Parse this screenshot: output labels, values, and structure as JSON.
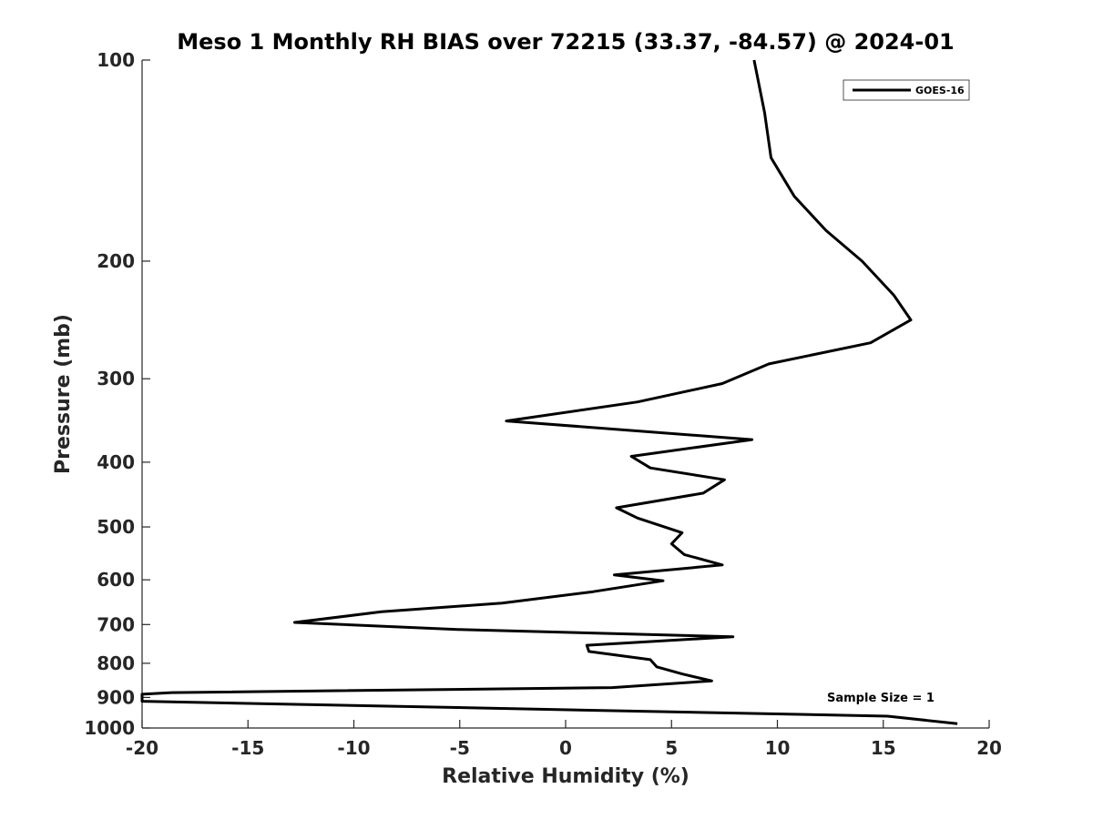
{
  "chart_data": {
    "type": "line",
    "title": "Meso 1 Monthly RH BIAS over 72215 (33.37, -84.57) @ 2024-01",
    "xlabel": "Relative Humidity (%)",
    "ylabel": "Pressure (mb)",
    "xlim": [
      -20,
      20
    ],
    "ylim": [
      1000,
      100
    ],
    "y_scale": "log",
    "y_reversed": true,
    "grid": false,
    "legend_position": "top-right",
    "x_ticks": [
      "-20",
      "-15",
      "-10",
      "-5",
      "0",
      "5",
      "10",
      "15",
      "20"
    ],
    "y_ticks": [
      "100",
      "200",
      "300",
      "400",
      "500",
      "600",
      "700",
      "800",
      "900",
      "1000"
    ],
    "annotation": "Sample Size = 1",
    "series": [
      {
        "name": "GOES-16",
        "color": "#000000",
        "points": [
          {
            "x": 8.9,
            "y": 100
          },
          {
            "x": 9.4,
            "y": 120
          },
          {
            "x": 9.7,
            "y": 140
          },
          {
            "x": 10.8,
            "y": 160
          },
          {
            "x": 12.3,
            "y": 180
          },
          {
            "x": 14.0,
            "y": 200
          },
          {
            "x": 15.5,
            "y": 225
          },
          {
            "x": 16.3,
            "y": 245
          },
          {
            "x": 14.4,
            "y": 265
          },
          {
            "x": 9.6,
            "y": 285
          },
          {
            "x": 7.4,
            "y": 305
          },
          {
            "x": 3.4,
            "y": 325
          },
          {
            "x": -2.8,
            "y": 347
          },
          {
            "x": 8.8,
            "y": 370
          },
          {
            "x": 3.1,
            "y": 392
          },
          {
            "x": 4.0,
            "y": 408
          },
          {
            "x": 7.5,
            "y": 425
          },
          {
            "x": 6.5,
            "y": 445
          },
          {
            "x": 2.4,
            "y": 468
          },
          {
            "x": 3.4,
            "y": 485
          },
          {
            "x": 5.5,
            "y": 510
          },
          {
            "x": 5.0,
            "y": 530
          },
          {
            "x": 5.6,
            "y": 550
          },
          {
            "x": 7.4,
            "y": 570
          },
          {
            "x": 2.3,
            "y": 590
          },
          {
            "x": 4.6,
            "y": 602
          },
          {
            "x": 1.3,
            "y": 625
          },
          {
            "x": -3.0,
            "y": 650
          },
          {
            "x": -8.7,
            "y": 670
          },
          {
            "x": -12.8,
            "y": 695
          },
          {
            "x": -5.1,
            "y": 712
          },
          {
            "x": 7.9,
            "y": 730
          },
          {
            "x": 1.0,
            "y": 752
          },
          {
            "x": 1.1,
            "y": 768
          },
          {
            "x": 4.0,
            "y": 790
          },
          {
            "x": 4.3,
            "y": 810
          },
          {
            "x": 5.5,
            "y": 830
          },
          {
            "x": 6.9,
            "y": 850
          },
          {
            "x": 2.2,
            "y": 870
          },
          {
            "x": -18.6,
            "y": 885
          },
          {
            "x": -20.0,
            "y": 890
          },
          {
            "x": -20.0,
            "y": 912
          },
          {
            "x": 15.2,
            "y": 960
          },
          {
            "x": 18.5,
            "y": 985
          }
        ]
      }
    ]
  }
}
